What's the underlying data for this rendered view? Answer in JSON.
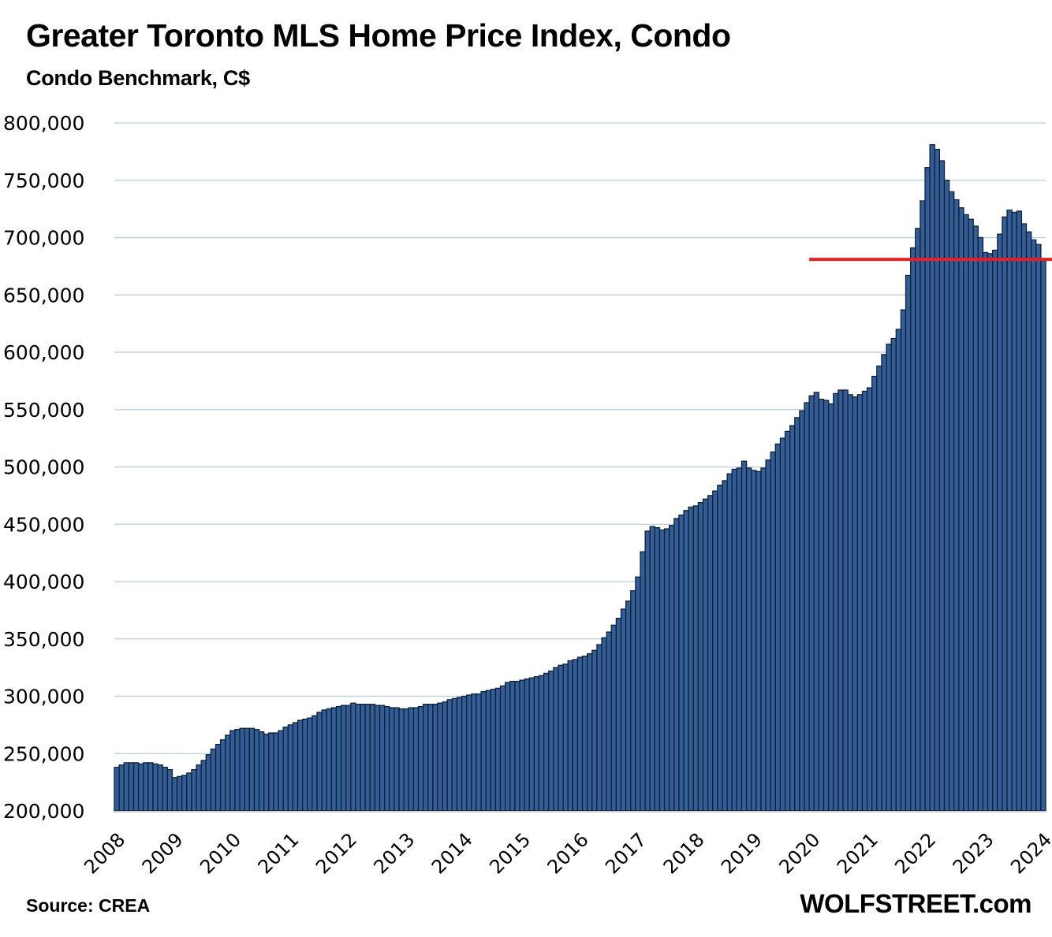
{
  "chart_data": {
    "type": "bar",
    "title": "Greater Toronto MLS Home Price Index, Condo",
    "subtitle": "Condo Benchmark, C$",
    "xlabel": "",
    "ylabel": "",
    "ylim": [
      200000,
      800000
    ],
    "yticks": [
      200000,
      250000,
      300000,
      350000,
      400000,
      450000,
      500000,
      550000,
      600000,
      650000,
      700000,
      750000,
      800000
    ],
    "ytick_labels": [
      "200,000",
      "250,000",
      "300,000",
      "350,000",
      "400,000",
      "450,000",
      "500,000",
      "550,000",
      "600,000",
      "650,000",
      "700,000",
      "750,000",
      "800,000"
    ],
    "xtick_labels": [
      "2008",
      "2009",
      "2010",
      "2011",
      "2012",
      "2013",
      "2014",
      "2015",
      "2016",
      "2017",
      "2018",
      "2019",
      "2020",
      "2021",
      "2022",
      "2023",
      "2024"
    ],
    "grid": true,
    "frequency": "monthly",
    "start": "2008-01",
    "end": "2024-01",
    "series": [
      {
        "name": "Condo Benchmark Price",
        "color": "#335e95",
        "values": [
          238000,
          240000,
          242000,
          242000,
          242000,
          241000,
          242000,
          242000,
          241000,
          240000,
          238000,
          236000,
          229000,
          230000,
          231000,
          233000,
          236000,
          240000,
          244000,
          249000,
          254000,
          258000,
          262000,
          266000,
          270000,
          271000,
          272000,
          272000,
          272000,
          271000,
          269000,
          267000,
          268000,
          268000,
          270000,
          273000,
          275000,
          277000,
          279000,
          280000,
          281000,
          283000,
          286000,
          288000,
          289000,
          290000,
          291000,
          292000,
          292000,
          294000,
          293000,
          293000,
          293000,
          293000,
          292000,
          292000,
          291000,
          290000,
          290000,
          289000,
          289000,
          290000,
          290000,
          291000,
          293000,
          293000,
          293000,
          294000,
          295000,
          297000,
          298000,
          299000,
          300000,
          301000,
          302000,
          302000,
          304000,
          305000,
          306000,
          307000,
          309000,
          312000,
          313000,
          313000,
          314000,
          315000,
          316000,
          317000,
          318000,
          320000,
          322000,
          325000,
          327000,
          328000,
          331000,
          332000,
          334000,
          335000,
          337000,
          340000,
          345000,
          351000,
          356000,
          362000,
          368000,
          376000,
          383000,
          392000,
          404000,
          426000,
          444000,
          448000,
          447000,
          445000,
          446000,
          449000,
          455000,
          458000,
          462000,
          465000,
          466000,
          469000,
          472000,
          475000,
          479000,
          484000,
          488000,
          494000,
          498000,
          499000,
          505000,
          499000,
          497000,
          496000,
          499000,
          506000,
          513000,
          520000,
          525000,
          531000,
          536000,
          543000,
          549000,
          556000,
          562000,
          565000,
          559000,
          558000,
          555000,
          564000,
          567000,
          567000,
          563000,
          561000,
          563000,
          566000,
          569000,
          579000,
          588000,
          598000,
          607000,
          612000,
          620000,
          637000,
          667000,
          691000,
          708000,
          732000,
          761000,
          781000,
          777000,
          767000,
          750000,
          740000,
          733000,
          726000,
          720000,
          716000,
          710000,
          700000,
          687000,
          686000,
          689000,
          703000,
          718000,
          724000,
          722000,
          723000,
          712000,
          705000,
          698000,
          694000,
          681000
        ]
      }
    ],
    "annotations": [
      {
        "type": "horizontal-line",
        "value": 681000,
        "from": "2020-01",
        "to": "2024-01",
        "color": "#ee1c25"
      }
    ]
  },
  "footer": {
    "source": "Source: CREA",
    "brand": "WOLFSTREET.com"
  },
  "colors": {
    "bar_fill": "#335e95",
    "bar_stroke": "#0f1f3a",
    "gridline": "#b9cde0",
    "reference_line": "#ee1c25",
    "axis": "#d0d0d0"
  }
}
